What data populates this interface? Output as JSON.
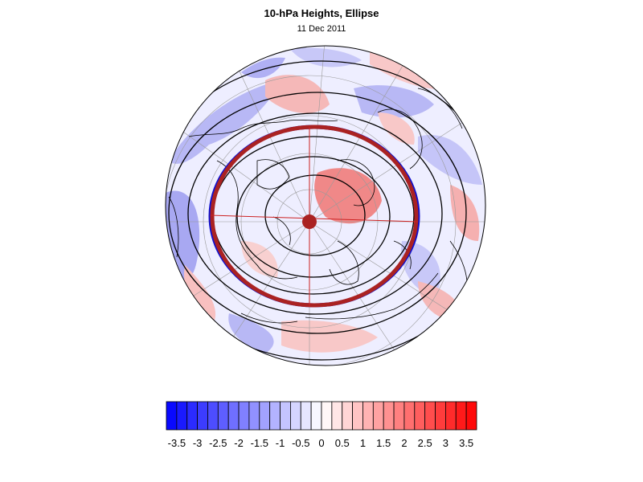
{
  "header": {
    "title": "10-hPa Heights, Ellipse",
    "date": "11 Dec 2011"
  },
  "map": {
    "projection": "polar stereographic, north pole centered",
    "background_color": "#eeeeff",
    "coastline_color": "#000000",
    "ellipse_colors": {
      "outer": "#1010cc",
      "inner": "#aa2222"
    },
    "center_marker_color": "#aa2222",
    "axis_line_color": "#cc2222"
  },
  "colorbar": {
    "tick_labels": [
      "-3.5",
      "-3",
      "-2.5",
      "-2",
      "-1.5",
      "-1",
      "-0.5",
      "0",
      "0.5",
      "1",
      "1.5",
      "2",
      "2.5",
      "3",
      "3.5"
    ],
    "min": -3.75,
    "max": 3.75,
    "step": 0.25,
    "low_color": "#0000ff",
    "mid_color": "#ffffff",
    "high_color": "#ff0000"
  }
}
